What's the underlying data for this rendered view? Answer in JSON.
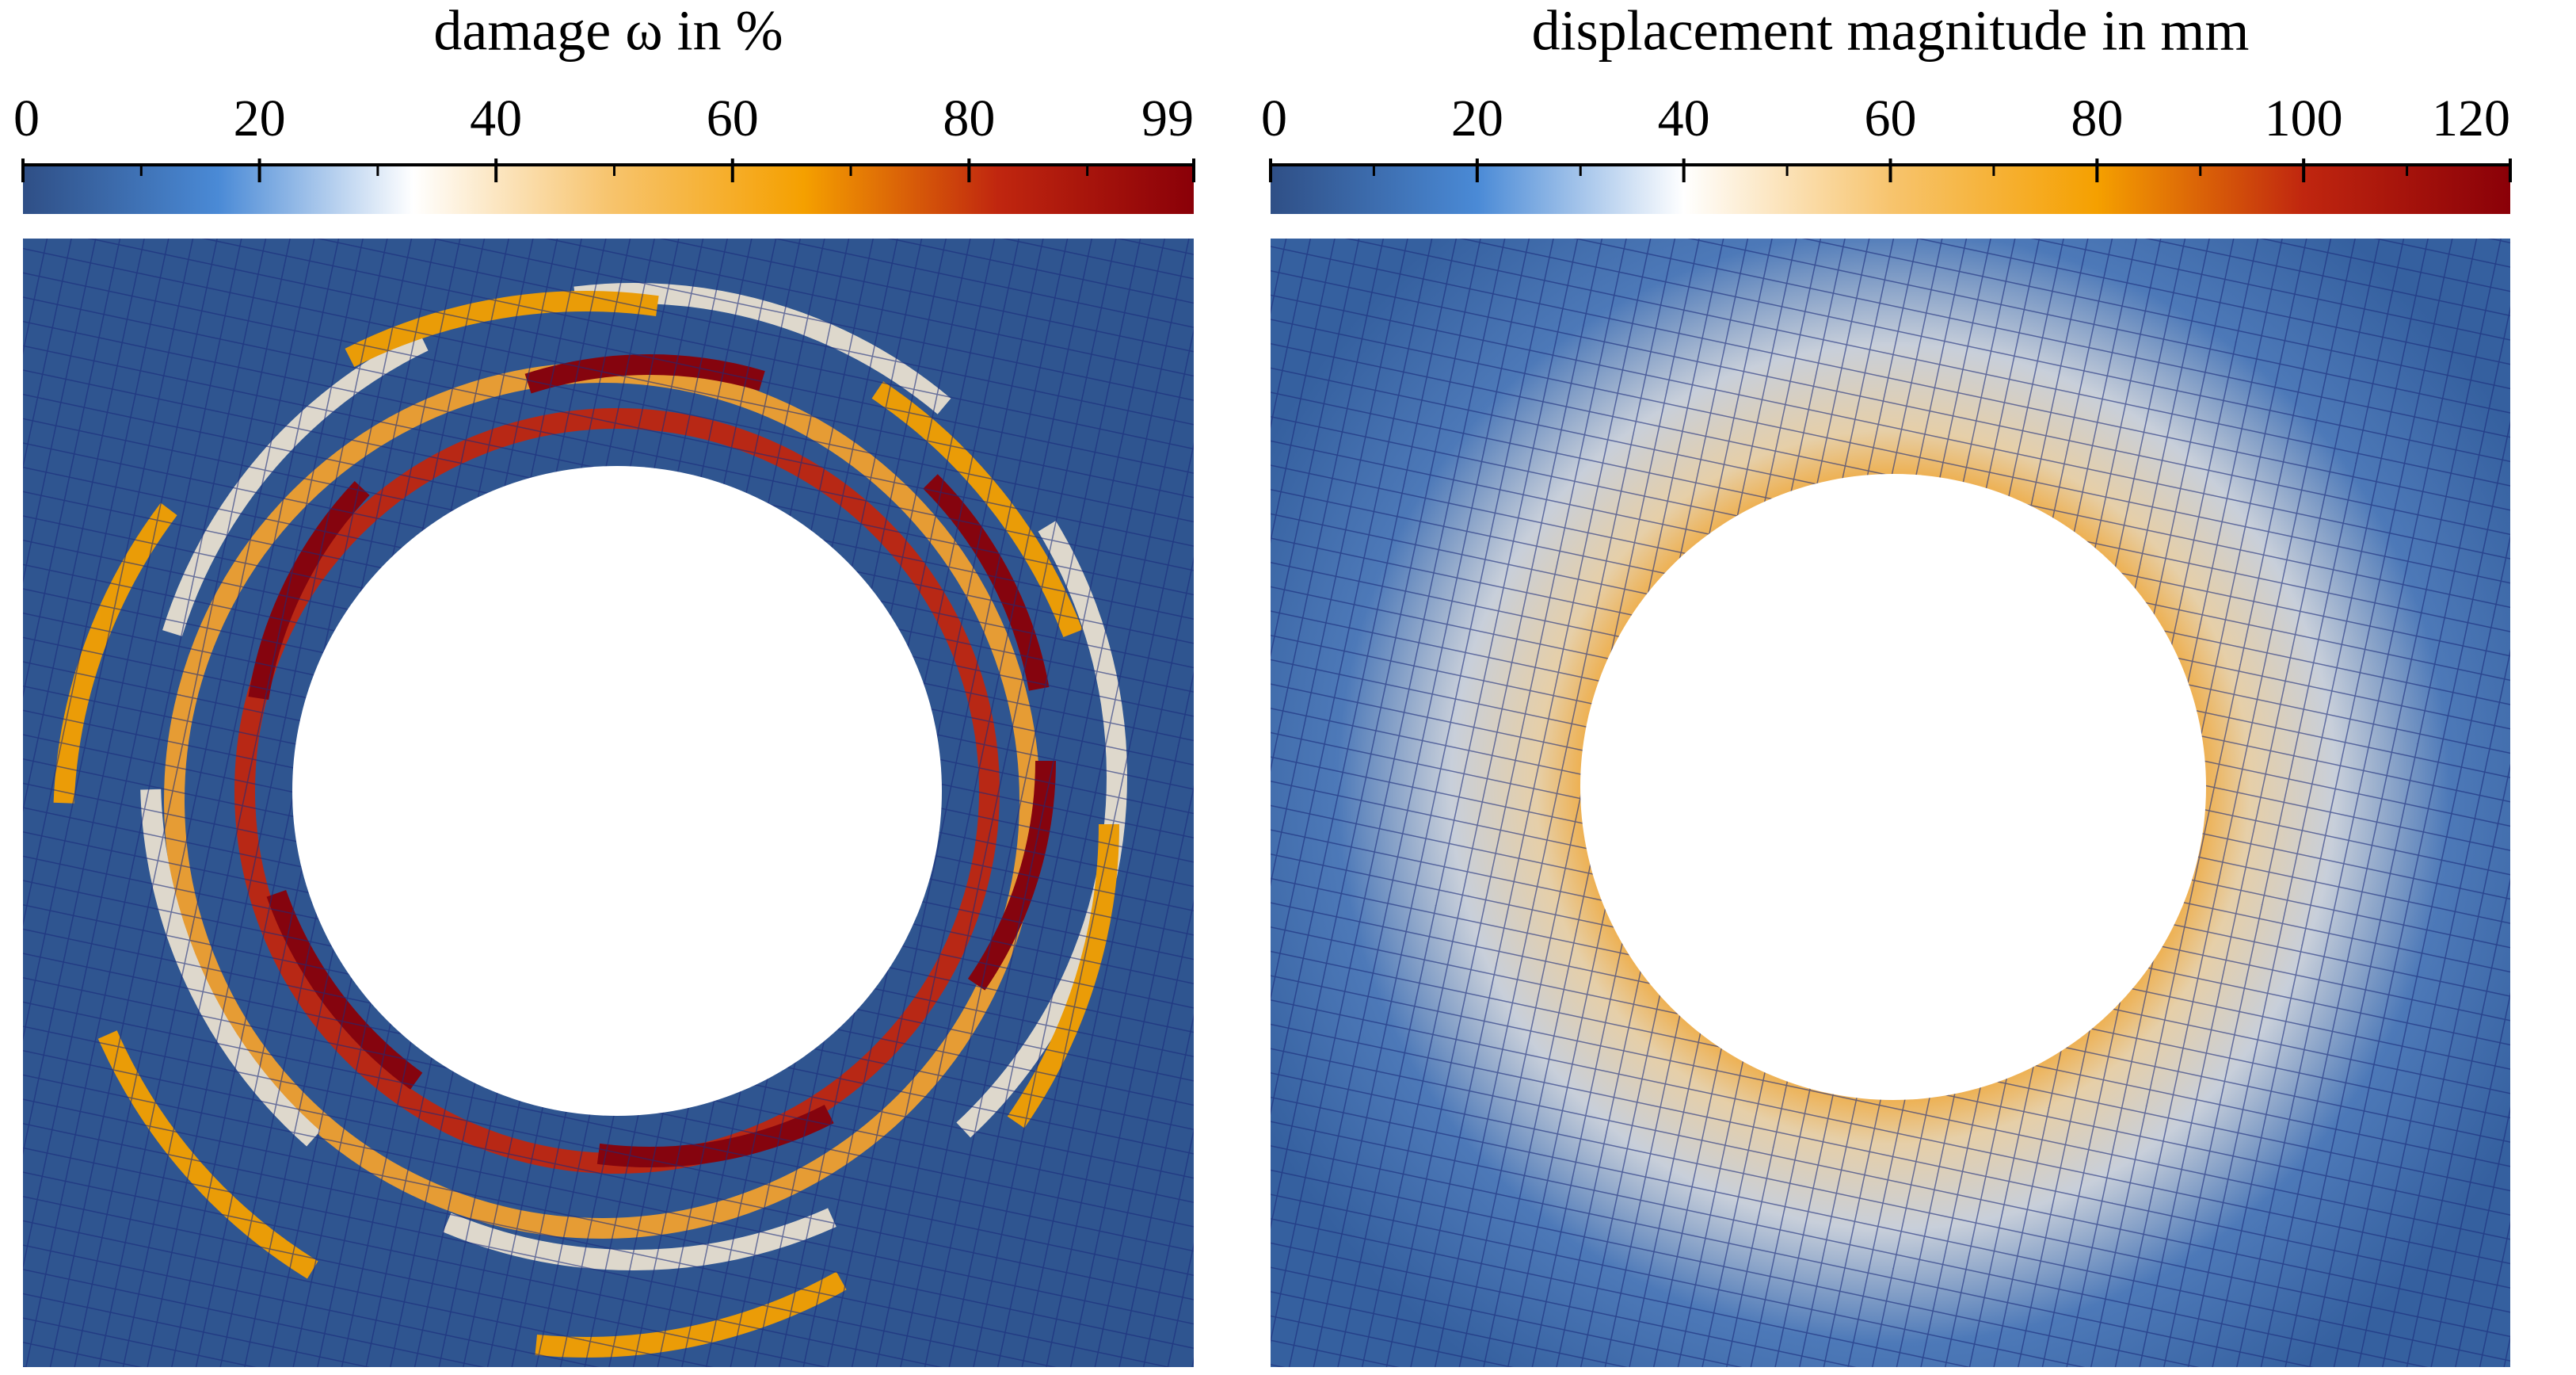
{
  "chart_data": [
    {
      "type": "colorbar",
      "title": "damage ω in %",
      "xlim": [
        0,
        99
      ],
      "xticks": [
        0,
        20,
        40,
        60,
        80,
        99
      ],
      "minor_xticks": [
        10,
        30,
        50,
        70,
        90
      ],
      "colormap": [
        "#2f4f86",
        "#4a8ad6",
        "#ffffff",
        "#f7c46e",
        "#f5a000",
        "#c0260f",
        "#8a0008"
      ]
    },
    {
      "type": "colorbar",
      "title": "displacement magnitude in mm",
      "xlim": [
        0,
        120
      ],
      "xticks": [
        0,
        20,
        40,
        60,
        80,
        100,
        120
      ],
      "minor_xticks": [
        10,
        30,
        50,
        70,
        90,
        110
      ],
      "colormap": [
        "#2f4f86",
        "#4a8ad6",
        "#ffffff",
        "#f7c46e",
        "#f5a000",
        "#c0260f",
        "#8a0008"
      ]
    }
  ]
}
